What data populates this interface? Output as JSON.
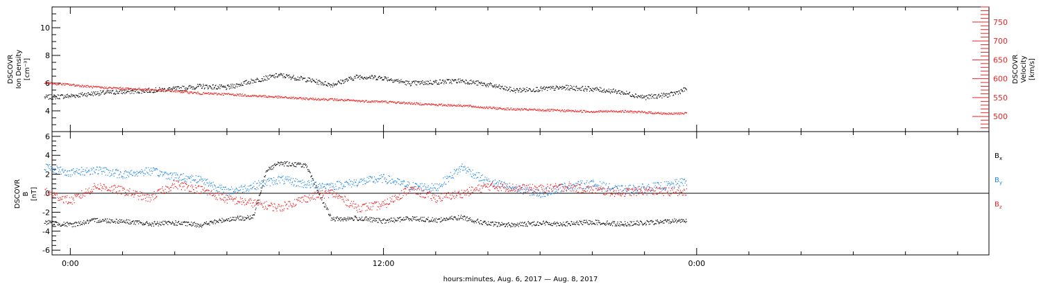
{
  "chart_data": [
    {
      "type": "scatter",
      "panel": "top",
      "ylabel_left": [
        "DSCOVR",
        "Ion Density",
        "[cm⁻³]"
      ],
      "ylabel_right": [
        "DSCOVR",
        "Velocity",
        "[km/s]"
      ],
      "ylim_left": [
        2.5,
        11.5
      ],
      "ylim_right": [
        460,
        790
      ],
      "left_ticks": [
        "4",
        "6",
        "8",
        "10"
      ],
      "right_ticks": [
        "500",
        "550",
        "600",
        "650",
        "700",
        "750"
      ],
      "x_unit": "hours since 0:00 Aug. 6, 2017",
      "series": [
        {
          "axis": "left",
          "color": "#000000",
          "x": [
            -1,
            0,
            1,
            2,
            3,
            4,
            5,
            6,
            7,
            8,
            9,
            10,
            11,
            12,
            13,
            14,
            15,
            16,
            17,
            18,
            19,
            20,
            21,
            22,
            23,
            23.6
          ],
          "y": [
            5.0,
            5.1,
            5.3,
            5.4,
            5.5,
            5.6,
            5.8,
            5.7,
            6.2,
            6.6,
            6.3,
            5.9,
            6.5,
            6.4,
            6.0,
            6.1,
            6.2,
            5.9,
            5.5,
            5.6,
            5.7,
            5.6,
            5.4,
            5.0,
            5.2,
            5.6
          ]
        },
        {
          "axis": "right",
          "color": "#ee2222",
          "x": [
            -1,
            0,
            1,
            2,
            3,
            4,
            5,
            6,
            7,
            8,
            9,
            10,
            11,
            12,
            13,
            14,
            15,
            16,
            17,
            18,
            19,
            20,
            21,
            22,
            23,
            23.6
          ],
          "y": [
            590,
            585,
            578,
            575,
            572,
            568,
            562,
            560,
            556,
            552,
            548,
            546,
            542,
            540,
            536,
            532,
            530,
            524,
            520,
            518,
            516,
            514,
            515,
            512,
            508,
            510
          ]
        }
      ]
    },
    {
      "type": "scatter",
      "panel": "bottom",
      "ylabel": [
        "DSCOVR",
        "B",
        "[nT]"
      ],
      "ylim": [
        -6.5,
        6.5
      ],
      "yticks": [
        "-6",
        "-4",
        "-2",
        "0",
        "2",
        "4",
        "6"
      ],
      "zero_line": true,
      "legend": [
        {
          "base": "B",
          "sub": "x",
          "color": "#000000"
        },
        {
          "base": "B",
          "sub": "y",
          "color": "#1e88e5"
        },
        {
          "base": "B",
          "sub": "z",
          "color": "#ee2222"
        }
      ],
      "series": [
        {
          "name": "Bx",
          "color": "#000000",
          "x": [
            -1,
            0,
            1,
            2,
            3,
            4,
            5,
            6,
            7,
            7.5,
            8,
            9,
            10,
            11,
            12,
            13,
            14,
            15,
            16,
            17,
            18,
            19,
            20,
            21,
            22,
            23,
            23.6
          ],
          "y": [
            -3.0,
            -3.3,
            -2.8,
            -2.9,
            -3.2,
            -3.1,
            -3.3,
            -2.7,
            -2.5,
            2.5,
            3.2,
            3.0,
            -2.7,
            -2.6,
            -2.9,
            -2.6,
            -2.8,
            -2.5,
            -3.2,
            -3.3,
            -3.1,
            -3.2,
            -3.0,
            -3.2,
            -3.1,
            -2.9,
            -2.8
          ]
        },
        {
          "name": "By",
          "color": "#1e88e5",
          "x": [
            -1,
            0,
            1,
            2,
            3,
            4,
            5,
            6,
            7,
            8,
            9,
            10,
            11,
            12,
            13,
            14,
            15,
            16,
            17,
            18,
            19,
            20,
            21,
            22,
            23,
            23.6
          ],
          "y": [
            2.8,
            2.2,
            2.5,
            2.0,
            2.4,
            1.8,
            1.5,
            0.2,
            0.8,
            1.5,
            1.0,
            0.8,
            1.2,
            1.6,
            0.8,
            0.6,
            2.8,
            1.2,
            0.6,
            0.0,
            0.8,
            1.0,
            0.4,
            0.6,
            0.9,
            1.3
          ]
        },
        {
          "name": "Bz",
          "color": "#ee2222",
          "x": [
            -1,
            0,
            1,
            2,
            3,
            4,
            5,
            6,
            7,
            8,
            9,
            10,
            11,
            12,
            13,
            14,
            15,
            16,
            17,
            18,
            19,
            20,
            21,
            22,
            23,
            23.6
          ],
          "y": [
            0.2,
            -0.8,
            0.8,
            0.3,
            -0.5,
            1.0,
            0.4,
            -0.6,
            -1.0,
            -1.5,
            -0.5,
            0.1,
            -1.5,
            -1.2,
            0.5,
            -0.5,
            0.0,
            0.8,
            0.6,
            0.5,
            0.7,
            0.4,
            0.1,
            0.3,
            0.2,
            0.1
          ]
        }
      ]
    }
  ],
  "x_axis": {
    "tick_labels": [
      "0:00",
      "12:00",
      "0:00"
    ],
    "tick_hours": [
      0,
      12,
      24
    ],
    "xlim_hours": [
      -0.7,
      35.2
    ],
    "title": "hours:minutes, Aug.  6, 2017 — Aug.  8, 2017"
  }
}
